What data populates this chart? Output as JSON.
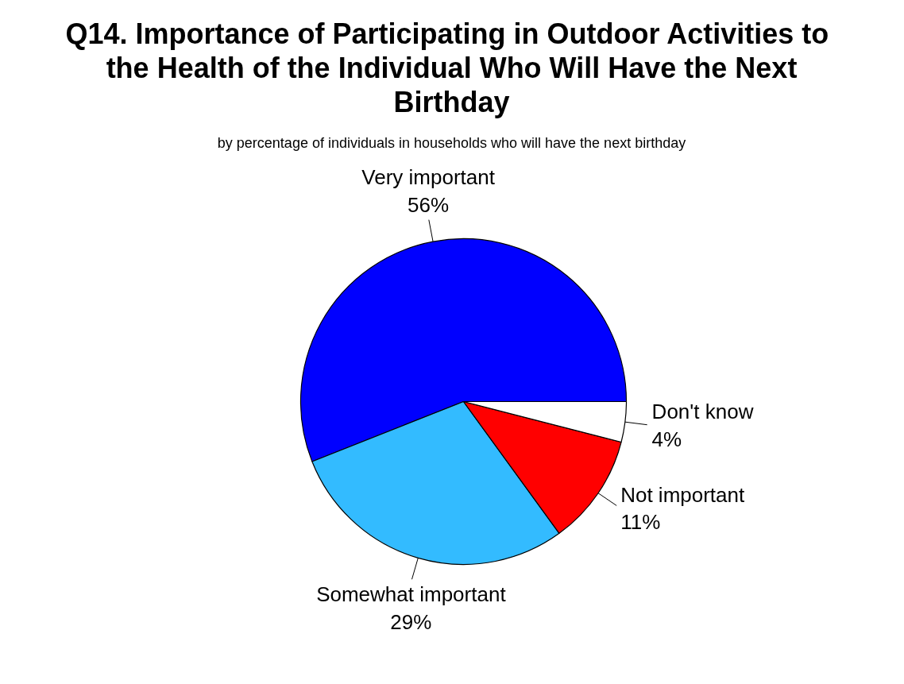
{
  "chart_data": {
    "type": "pie",
    "title": "Q14.  Importance of Participating in Outdoor Activities to the Health of the Individual Who Will Have the Next Birthday",
    "subtitle": "by percentage of individuals in households who will have the next birthday",
    "categories": [
      "Very important",
      "Somewhat important",
      "Not important",
      "Don't know"
    ],
    "values": [
      56,
      29,
      11,
      4
    ],
    "value_labels": [
      "56%",
      "29%",
      "11%",
      "4%"
    ],
    "colors": [
      "#0000ff",
      "#33bbff",
      "#ff0000",
      "#ffffff"
    ]
  }
}
